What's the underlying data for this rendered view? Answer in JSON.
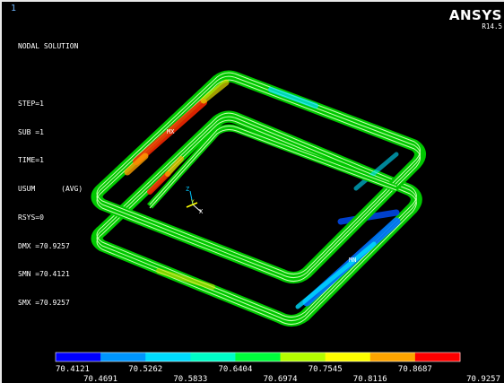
{
  "window_number": "1",
  "info_lines": [
    "NODAL SOLUTION",
    "",
    "STEP=1",
    "SUB =1",
    "TIME=1",
    "USUM      (AVG)",
    "RSYS=0",
    "DMX =70.9257",
    "SMN =70.4121",
    "SMX =70.9257"
  ],
  "brand": {
    "logo": "ANSYS",
    "version": "R14.5"
  },
  "markers": {
    "max": "MX",
    "min": "MN"
  },
  "triad": {
    "z": "Z",
    "y": "Y",
    "x": "X"
  },
  "legend": {
    "colors": [
      "#0000ff",
      "#0096ff",
      "#00dcff",
      "#00ffc8",
      "#00ff3c",
      "#b4ff00",
      "#ffff00",
      "#ffa500",
      "#ff0000"
    ],
    "labels_top": [
      "70.4121",
      "70.5262",
      "70.6404",
      "70.7545",
      "70.8687"
    ],
    "labels_bottom": [
      "70.4691",
      "70.5833",
      "70.6974",
      "70.8116",
      "70.9257"
    ]
  }
}
